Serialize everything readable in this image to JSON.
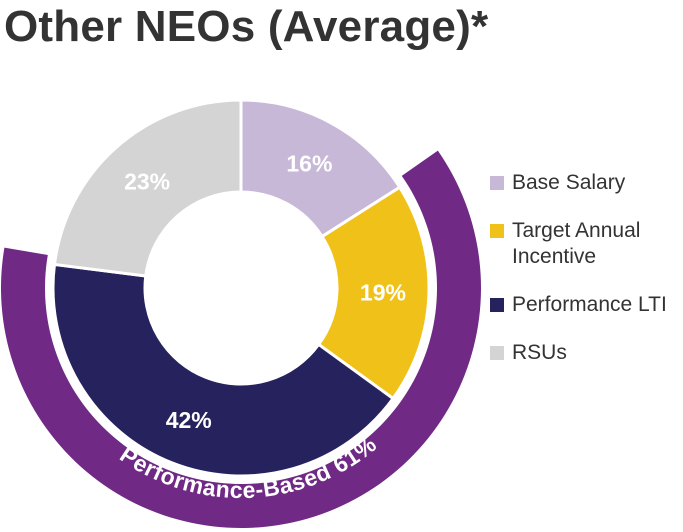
{
  "chart_data": {
    "type": "pie",
    "title": "Other NEOs (Average)*",
    "categories": [
      "Base Salary",
      "Target Annual Incentive",
      "Performance LTI",
      "RSUs"
    ],
    "values": [
      16,
      19,
      42,
      23
    ],
    "value_labels": [
      "16%",
      "19%",
      "42%",
      "23%"
    ],
    "colors": [
      "#c7b8d8",
      "#f0c219",
      "#26225e",
      "#d4d4d4"
    ],
    "donut": true,
    "outer_ring": {
      "label": "Performance-Based 61%",
      "covers": [
        "Target Annual Incentive",
        "Performance LTI"
      ],
      "value": 61,
      "color": "#702a86"
    },
    "legend": {
      "position": "right",
      "entries": [
        "Base Salary",
        "Target Annual Incentive",
        "Performance LTI",
        "RSUs"
      ]
    }
  }
}
